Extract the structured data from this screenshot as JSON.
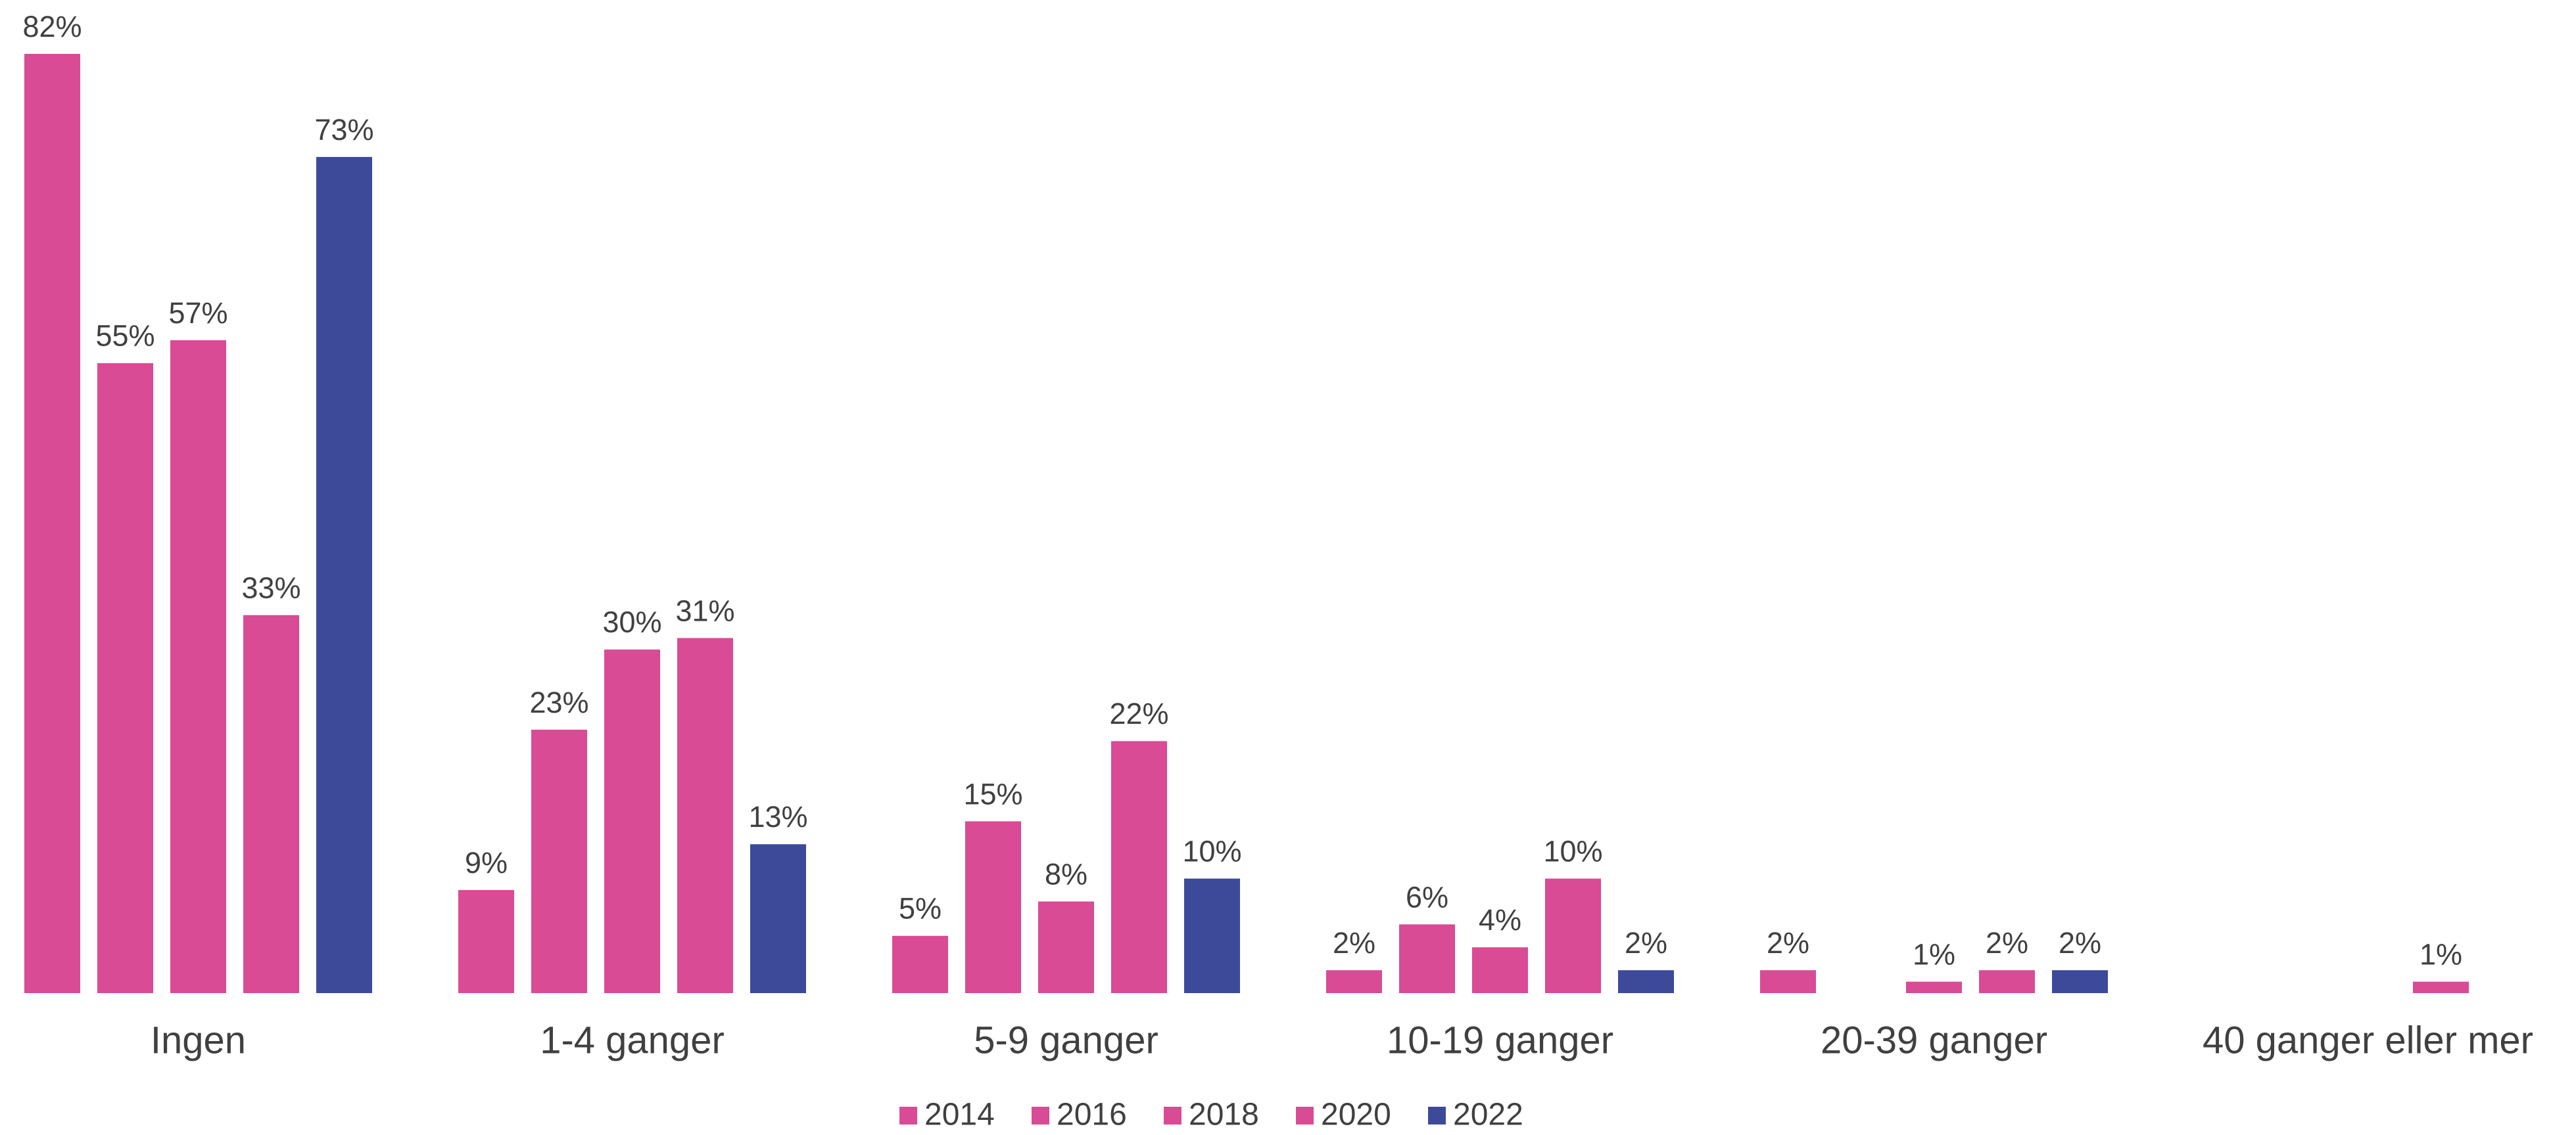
{
  "chart_data": {
    "type": "bar",
    "categories": [
      "Ingen",
      "1-4 ganger",
      "5-9 ganger",
      "10-19 ganger",
      "20-39 ganger",
      "40 ganger eller mer"
    ],
    "series": [
      {
        "name": "2014",
        "color": "#d94b94",
        "values": [
          82,
          9,
          5,
          2,
          2,
          null
        ],
        "value_labels": [
          "82%",
          "9%",
          "5%",
          "2%",
          "2%",
          null
        ]
      },
      {
        "name": "2016",
        "color": "#d94b94",
        "values": [
          55,
          23,
          15,
          6,
          null,
          null
        ],
        "value_labels": [
          "55%",
          "23%",
          "15%",
          "6%",
          null,
          null
        ]
      },
      {
        "name": "2018",
        "color": "#d94b94",
        "values": [
          57,
          30,
          8,
          4,
          1,
          null
        ],
        "value_labels": [
          "57%",
          "30%",
          "8%",
          "4%",
          "1%",
          null
        ]
      },
      {
        "name": "2020",
        "color": "#d94b94",
        "values": [
          33,
          31,
          22,
          10,
          2,
          1
        ],
        "value_labels": [
          "33%",
          "31%",
          "22%",
          "10%",
          "2%",
          "1%"
        ]
      },
      {
        "name": "2022",
        "color": "#3d4a9a",
        "values": [
          73,
          13,
          10,
          2,
          2,
          null
        ],
        "value_labels": [
          "73%",
          "13%",
          "10%",
          "2%",
          "2%",
          null
        ]
      }
    ]
  }
}
